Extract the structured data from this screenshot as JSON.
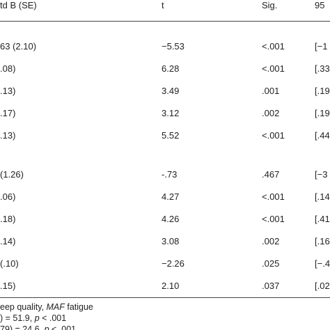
{
  "table": {
    "header": [
      "td B (SE)",
      "t",
      "Sig.",
      "95"
    ],
    "groups": [
      [
        [
          "63 (2.10)",
          "−5.53",
          "<.001",
          "[−1"
        ],
        [
          ".08)",
          "6.28",
          "<.001",
          "[.33"
        ],
        [
          ".13)",
          "3.49",
          ".001",
          "[.19"
        ],
        [
          ".17)",
          "3.12",
          ".002",
          "[.19"
        ],
        [
          ".13)",
          "5.52",
          "<.001",
          "[.44"
        ]
      ],
      [
        [
          "(1.26)",
          "-.73",
          ".467",
          "[−3"
        ],
        [
          ".06)",
          "4.27",
          "<.001",
          "[.14"
        ],
        [
          ".18)",
          "4.26",
          "<.001",
          "[.41"
        ],
        [
          ".14)",
          "3.08",
          ".002",
          "[.16"
        ],
        [
          "(.10)",
          "−2.26",
          ".025",
          "[−.4"
        ],
        [
          ".15)",
          "2.10",
          ".037",
          "[.02"
        ]
      ]
    ]
  },
  "notes": [
    [
      "eep quality, ",
      "MAF",
      " fatigue"
    ],
    [
      ") = 51.9, ",
      "p",
      " < .001"
    ],
    [
      "79) = 24.6, ",
      "p",
      " < .001"
    ]
  ]
}
